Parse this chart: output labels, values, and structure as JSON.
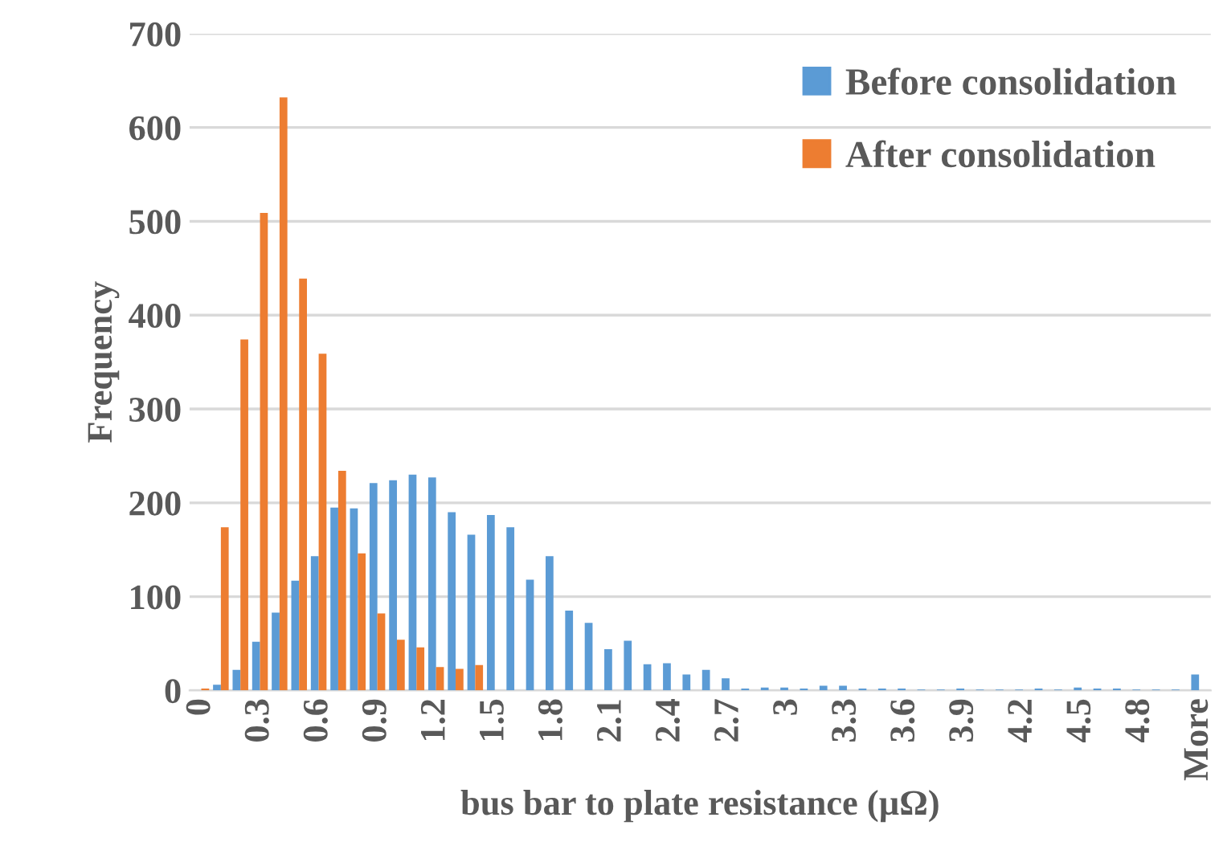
{
  "chart_data": {
    "type": "bar",
    "xlabel": "bus bar to plate resistance (µΩ)",
    "ylabel": "Frequency",
    "categories": [
      "0",
      null,
      null,
      "0.3",
      null,
      null,
      "0.6",
      null,
      null,
      "0.9",
      null,
      null,
      "1.2",
      null,
      null,
      "1.5",
      null,
      null,
      "1.8",
      null,
      null,
      "2.1",
      null,
      null,
      "2.4",
      null,
      null,
      "2.7",
      null,
      null,
      "3",
      null,
      null,
      "3.3",
      null,
      null,
      "3.6",
      null,
      null,
      "3.9",
      null,
      null,
      "4.2",
      null,
      null,
      "4.5",
      null,
      null,
      "4.8",
      null,
      null,
      "More"
    ],
    "series": [
      {
        "name": "Before consolidation",
        "color": "#5b9bd5",
        "values": [
          0,
          6,
          22,
          52,
          83,
          117,
          143,
          195,
          194,
          221,
          224,
          230,
          227,
          190,
          166,
          187,
          174,
          118,
          143,
          85,
          72,
          44,
          53,
          28,
          29,
          17,
          22,
          13,
          2,
          3,
          3,
          2,
          5,
          5,
          2,
          2,
          2,
          1,
          1,
          2,
          1,
          1,
          1,
          2,
          1,
          3,
          2,
          2,
          1,
          1,
          1,
          17
        ]
      },
      {
        "name": "After consolidation",
        "color": "#ed7d31",
        "values": [
          2,
          174,
          374,
          509,
          632,
          439,
          359,
          234,
          146,
          82,
          54,
          46,
          25,
          23,
          27,
          0,
          0,
          0,
          0,
          0,
          0,
          0,
          0,
          0,
          0,
          0,
          0,
          0,
          0,
          0,
          0,
          0,
          0,
          0,
          0,
          0,
          0,
          0,
          0,
          0,
          0,
          0,
          0,
          0,
          0,
          0,
          0,
          0,
          0,
          0,
          0,
          0
        ]
      }
    ],
    "ylim": [
      0,
      700
    ],
    "yticks": [
      0,
      100,
      200,
      300,
      400,
      500,
      600,
      700
    ],
    "grid": "y",
    "legend": "top right"
  }
}
